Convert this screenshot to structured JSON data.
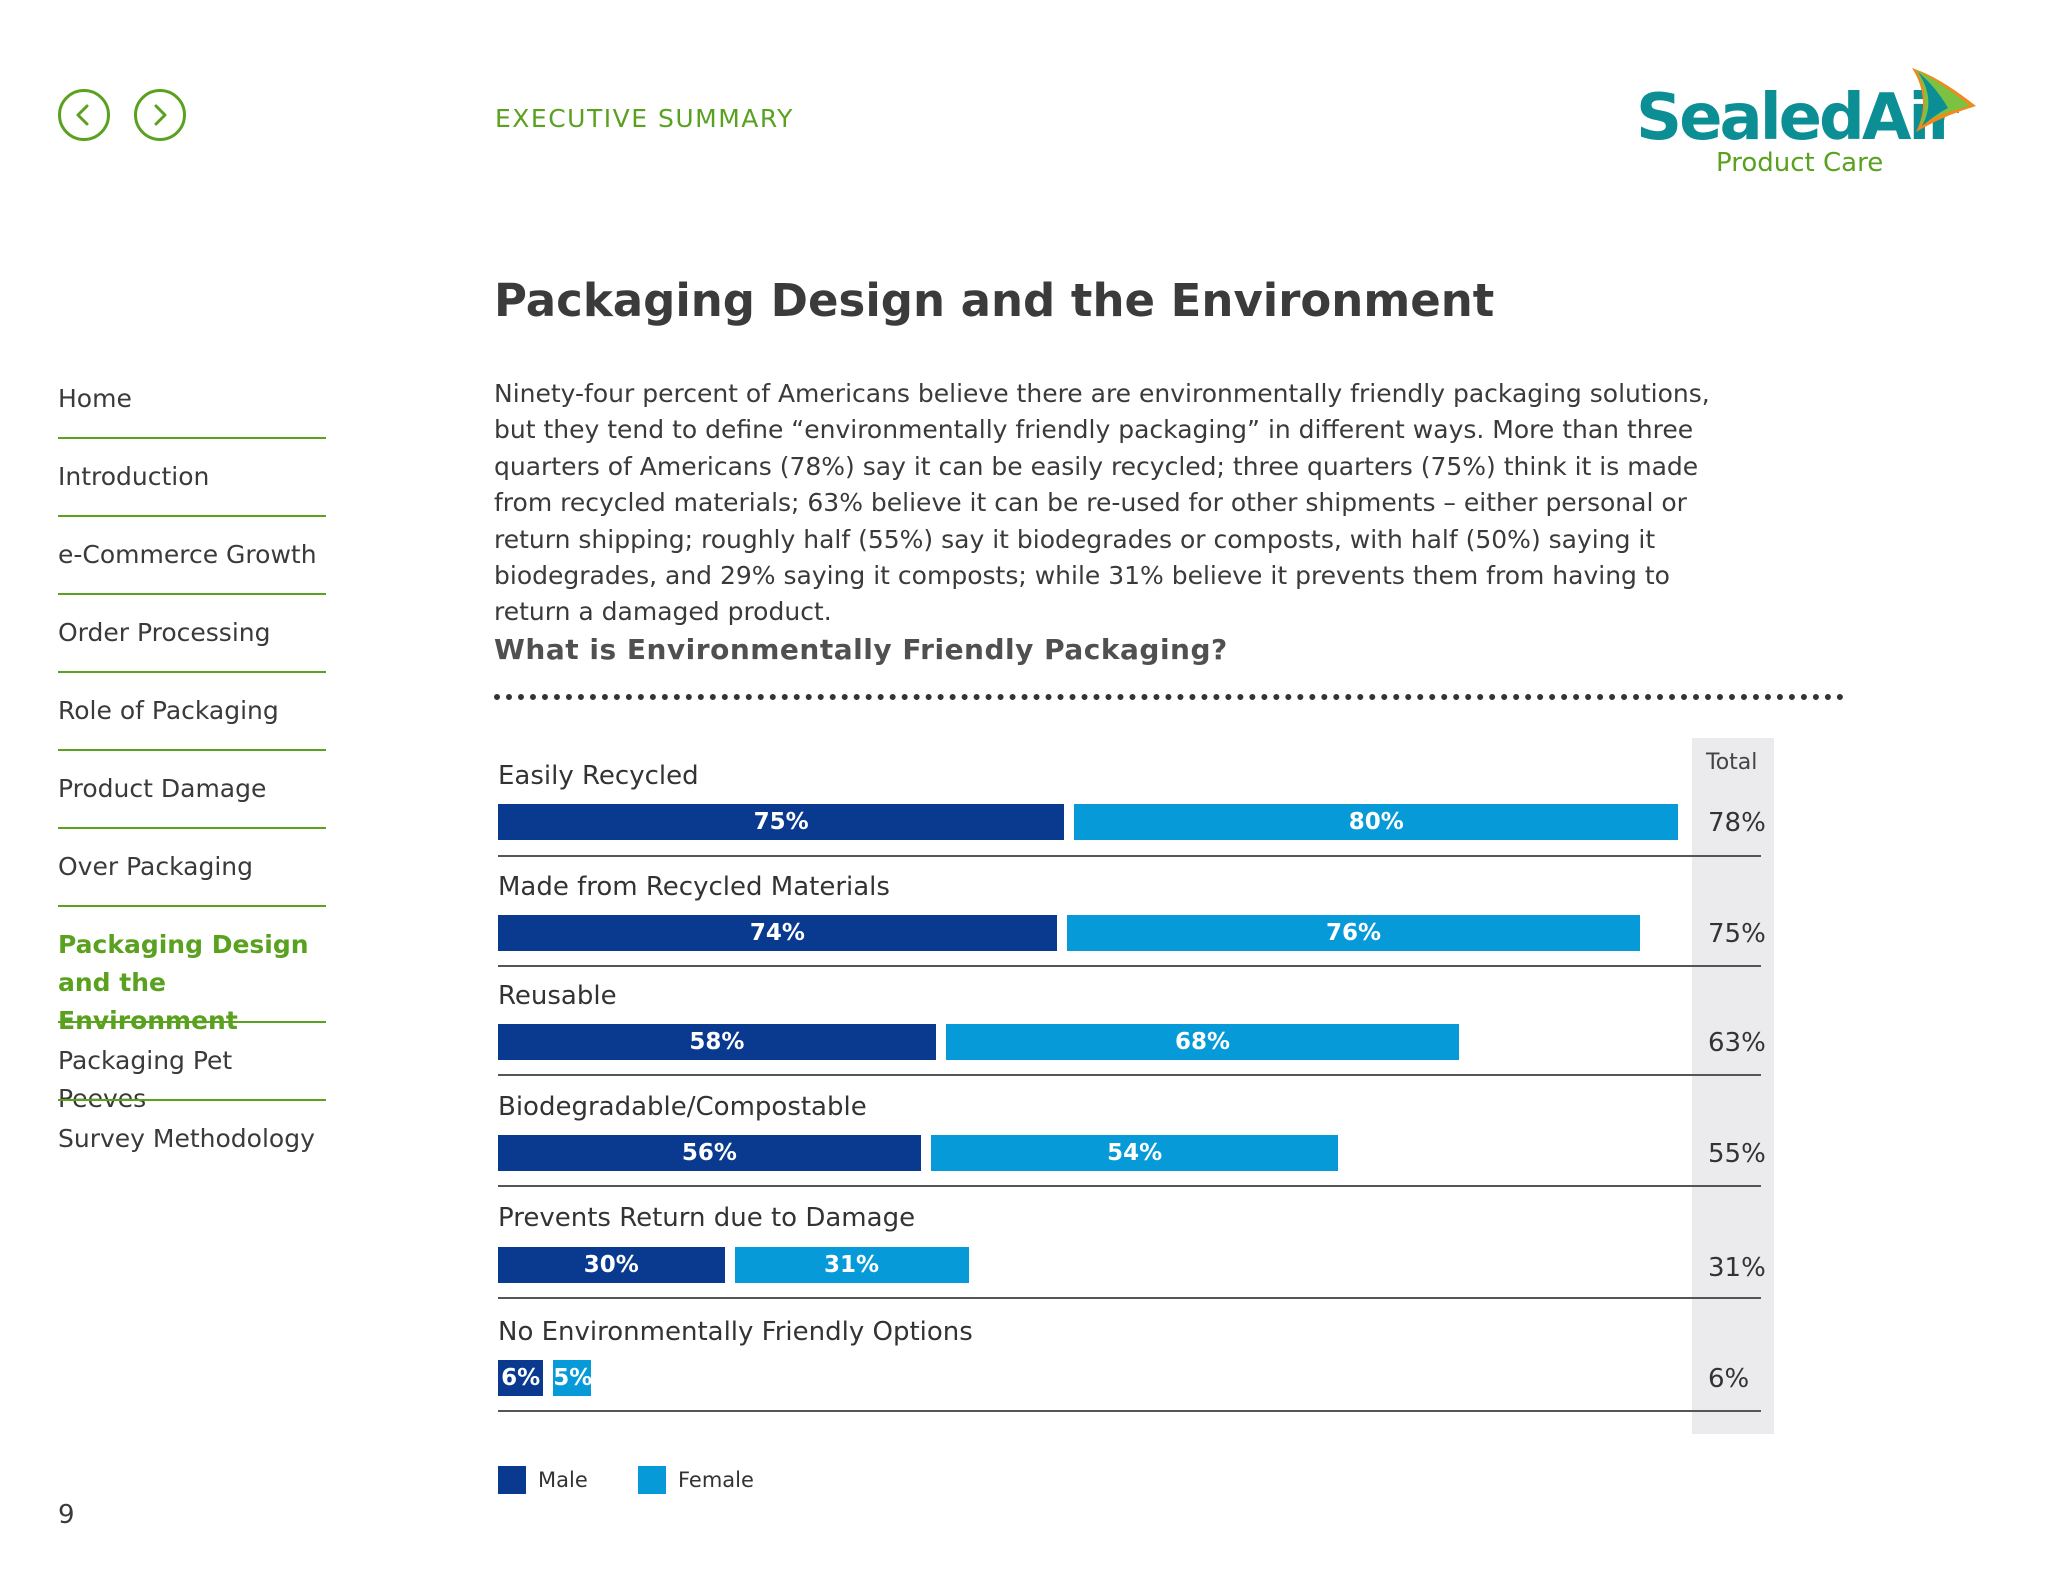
{
  "header": {
    "section_label": "EXECUTIVE SUMMARY",
    "logo_text": "SealedAir",
    "logo_subtext": "Product Care",
    "prev_icon": "chevron-left-icon",
    "next_icon": "chevron-right-icon"
  },
  "colors": {
    "accent": "#5aa11f",
    "male": "#0a3a8f",
    "female": "#079ad9",
    "logo_teal": "#0c8f94"
  },
  "sidebar": {
    "items": [
      {
        "label": "Home"
      },
      {
        "label": "Introduction"
      },
      {
        "label": "e-Commerce Growth"
      },
      {
        "label": "Order Processing"
      },
      {
        "label": "Role of Packaging"
      },
      {
        "label": "Product Damage"
      },
      {
        "label": "Over Packaging"
      },
      {
        "label": "Packaging Design and the Environment",
        "active": true
      },
      {
        "label": "Packaging Pet Peeves"
      },
      {
        "label": "Survey Methodology"
      }
    ]
  },
  "main": {
    "title": "Packaging Design and the Environment",
    "intro": "Ninety-four percent of Americans believe there are environmentally friendly packaging solutions, but they tend to define “environmentally friendly packaging” in different ways. More than three quarters of Americans (78%) say it can be easily recycled; three quarters (75%) think it is made from recycled materials; 63% believe it can be re-used for other shipments – either personal or return shipping; roughly half (55%) say it biodegrades or composts, with half (50%) saying it biodegrades, and 29% saying it composts; while 31% believe it prevents them from having to return a damaged product.",
    "chart_heading": "What is Environmentally Friendly Packaging?"
  },
  "chart_data": {
    "type": "bar",
    "orientation": "horizontal",
    "title": "What is Environmentally Friendly Packaging?",
    "categories": [
      "Easily Recycled",
      "Made from Recycled Materials",
      "Reusable",
      "Biodegradable/Compostable",
      "Prevents Return due to Damage",
      "No Environmentally Friendly Options"
    ],
    "series": [
      {
        "name": "Male",
        "values": [
          75,
          74,
          58,
          56,
          30,
          6
        ],
        "labels": [
          "75%",
          "74%",
          "58%",
          "56%",
          "30%",
          "6%"
        ]
      },
      {
        "name": "Female",
        "values": [
          80,
          76,
          68,
          54,
          31,
          5
        ],
        "labels": [
          "80%",
          "76%",
          "68%",
          "54%",
          "31%",
          "5%"
        ]
      }
    ],
    "total_header": "Total",
    "totals": [
      78,
      75,
      63,
      55,
      31,
      6
    ],
    "total_labels": [
      "78%",
      "75%",
      "63%",
      "55%",
      "31%",
      "6%"
    ],
    "legend_placement": "bottom-left",
    "grid": false
  },
  "footer": {
    "page_number": "9"
  }
}
